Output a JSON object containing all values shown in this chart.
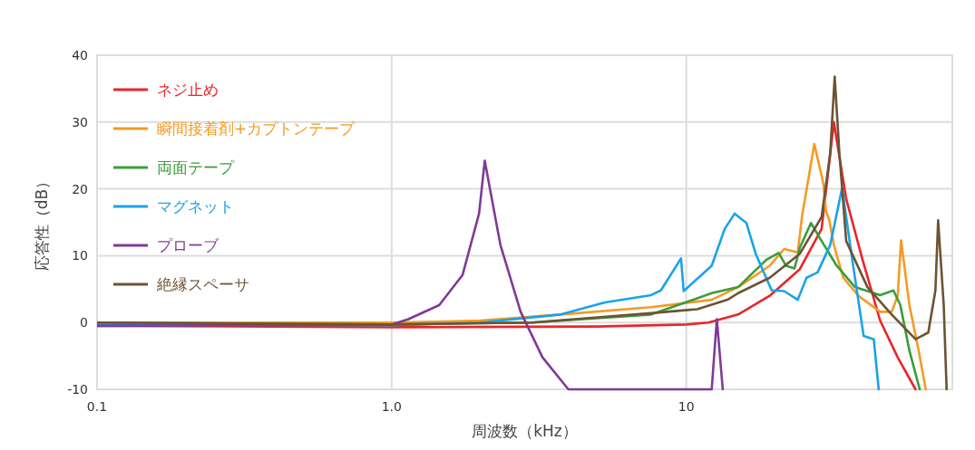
{
  "chart_data": {
    "type": "line",
    "xlabel": "周波数（kHz）",
    "ylabel": "応答性（dB）",
    "log": "x",
    "xlim": [
      0.1,
      80
    ],
    "ylim": [
      -10,
      40
    ],
    "xticks": [
      0.1,
      {
        "value": 1,
        "label": "1.0"
      },
      10
    ],
    "yticks": [
      -10,
      0,
      10,
      20,
      30,
      40
    ],
    "grid": true,
    "legend": "top left",
    "line_style": "solid",
    "marker": "none",
    "series": [
      {
        "name": "ネジ止め",
        "color": "#e8262a",
        "x": [
          0.1,
          1,
          5,
          10,
          11.9,
          15,
          19.2,
          24.3,
          28.8,
          31.7,
          34.9,
          39.6,
          45.5,
          52.2,
          60
        ],
        "values": [
          -0.5,
          -0.7,
          -0.6,
          -0.3,
          0,
          1.2,
          4,
          8,
          14,
          30,
          18.5,
          9.5,
          0.3,
          -5.2,
          -10
        ]
      },
      {
        "name": "瞬間接着剤+カプトンテープ",
        "color": "#f59a23",
        "x": [
          0.1,
          1,
          2,
          3.75,
          7.6,
          12.2,
          15,
          19.2,
          21.5,
          23.9,
          24.7,
          27.2,
          29.2,
          29.8,
          30.6,
          31.7,
          34.1,
          38.4,
          45.5,
          49.8,
          52.2,
          53.6,
          57.2,
          61.5,
          65
        ],
        "values": [
          0,
          0,
          0.3,
          1.2,
          2.3,
          3.4,
          5.3,
          8.5,
          11,
          10.5,
          15.8,
          26.7,
          20.8,
          16.7,
          15.3,
          11.6,
          6.7,
          4,
          1.6,
          1.6,
          4,
          12.3,
          2.6,
          -4.2,
          -10
        ]
      },
      {
        "name": "両面テープ",
        "color": "#3a9d3a",
        "x": [
          0.1,
          1,
          3,
          7.6,
          12.2,
          15,
          18.7,
          20.6,
          21.8,
          23.3,
          24.3,
          26.5,
          28.8,
          32.4,
          37.4,
          45.5,
          50.5,
          53.3,
          57.2,
          62
        ],
        "values": [
          0,
          -0.3,
          0,
          1.2,
          4.4,
          5.3,
          9.4,
          10.4,
          8.5,
          8.1,
          11.2,
          14.9,
          12.2,
          8.5,
          5.3,
          4.1,
          4.8,
          2.6,
          -4.2,
          -10
        ]
      },
      {
        "name": "マグネット",
        "color": "#1aa3e8",
        "x": [
          0.1,
          1,
          2,
          3.75,
          5.3,
          7.6,
          8.2,
          9.6,
          9.8,
          12.2,
          13.5,
          14.6,
          16,
          17.2,
          19.5,
          21.5,
          23.9,
          25.6,
          27.9,
          30.8,
          33.8,
          36.6,
          40,
          43.3,
          45
        ],
        "values": [
          -0.3,
          -0.4,
          0,
          1.2,
          3,
          4.1,
          4.8,
          9.6,
          4.7,
          8.5,
          14,
          16.3,
          14.9,
          10.3,
          4.8,
          4.7,
          3.4,
          6.7,
          7.5,
          11.6,
          20.1,
          9.4,
          -2,
          -2.5,
          -10
        ]
      },
      {
        "name": "プローブ",
        "color": "#7e3b97",
        "x": [
          0.1,
          1,
          1.14,
          1.45,
          1.74,
          1.98,
          2.07,
          2.34,
          2.74,
          3.25,
          3.98,
          12.2,
          12.7,
          13.3
        ],
        "values": [
          -0.5,
          -0.3,
          0.5,
          2.6,
          7.1,
          16.3,
          24.2,
          11.6,
          1.6,
          -5.2,
          -10,
          -10,
          0.5,
          -10
        ]
      },
      {
        "name": "絶縁スペーサ",
        "color": "#6b5434",
        "x": [
          0.1,
          1,
          3,
          7.6,
          10.9,
          13.8,
          15,
          19.2,
          24.3,
          28.8,
          30.8,
          31.9,
          33.1,
          34.9,
          41.2,
          49.8,
          60,
          66.3,
          70.1,
          71.6,
          74.8,
          76.5
        ],
        "values": [
          0,
          -0.3,
          0,
          1.4,
          2,
          3.4,
          4.4,
          6.7,
          10.3,
          15.8,
          25.3,
          36.8,
          25.3,
          12.2,
          5.3,
          1.2,
          -2.5,
          -1.5,
          4.8,
          15.3,
          2.6,
          -10
        ]
      }
    ]
  }
}
